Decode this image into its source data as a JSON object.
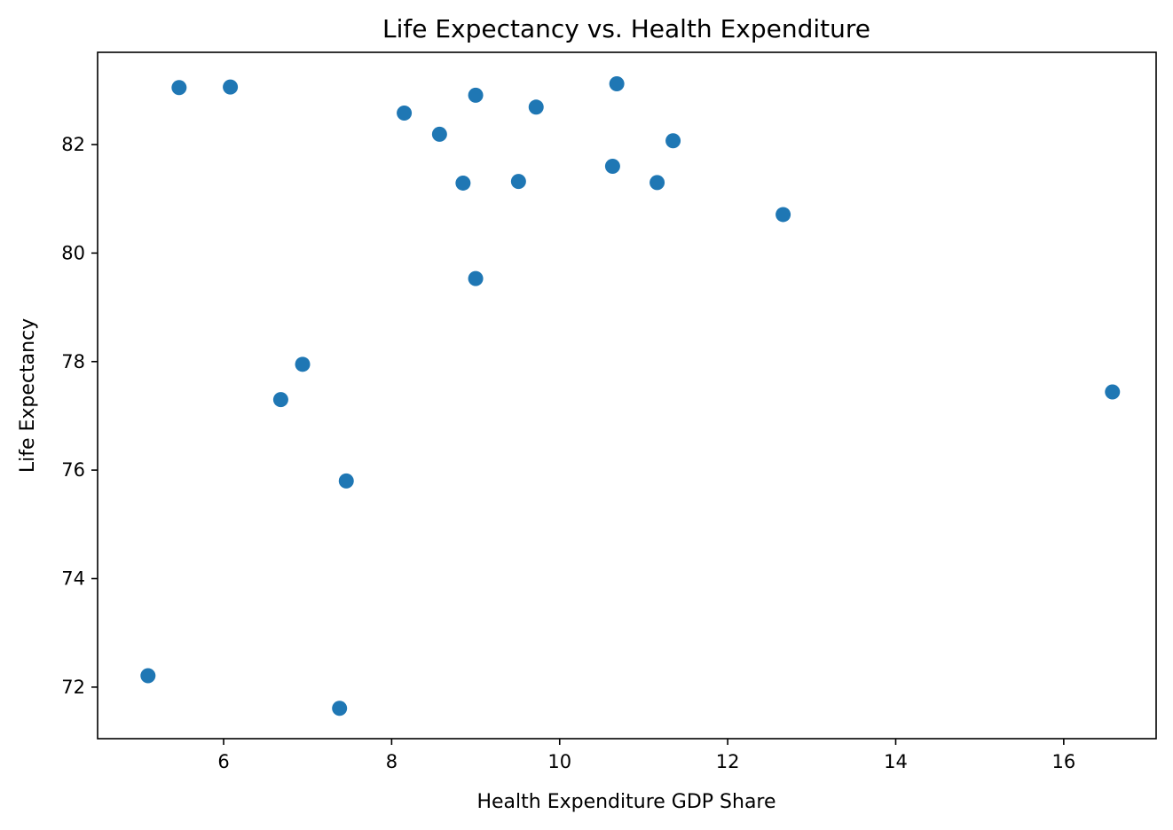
{
  "chart_data": {
    "type": "scatter",
    "title": "Life Expectancy vs. Health Expenditure",
    "xlabel": "Health Expenditure GDP Share",
    "ylabel": "Life Expectancy",
    "xlim": [
      4.5,
      17.1
    ],
    "ylim": [
      71.05,
      83.7
    ],
    "xticks": [
      6,
      8,
      10,
      12,
      14,
      16
    ],
    "yticks": [
      72,
      74,
      76,
      78,
      80,
      82
    ],
    "grid": false,
    "marker_color": "#1f77b4",
    "points": [
      {
        "x": 5.47,
        "y": 83.05
      },
      {
        "x": 6.08,
        "y": 83.06
      },
      {
        "x": 8.15,
        "y": 82.58
      },
      {
        "x": 8.57,
        "y": 82.19
      },
      {
        "x": 9.0,
        "y": 82.91
      },
      {
        "x": 9.72,
        "y": 82.69
      },
      {
        "x": 10.68,
        "y": 83.12
      },
      {
        "x": 11.35,
        "y": 82.07
      },
      {
        "x": 10.63,
        "y": 81.6
      },
      {
        "x": 8.85,
        "y": 81.29
      },
      {
        "x": 9.51,
        "y": 81.32
      },
      {
        "x": 11.16,
        "y": 81.3
      },
      {
        "x": 12.66,
        "y": 80.71
      },
      {
        "x": 9.0,
        "y": 79.53
      },
      {
        "x": 6.94,
        "y": 77.95
      },
      {
        "x": 6.68,
        "y": 77.3
      },
      {
        "x": 16.58,
        "y": 77.44
      },
      {
        "x": 7.46,
        "y": 75.8
      },
      {
        "x": 5.1,
        "y": 72.21
      },
      {
        "x": 7.38,
        "y": 71.61
      }
    ]
  }
}
